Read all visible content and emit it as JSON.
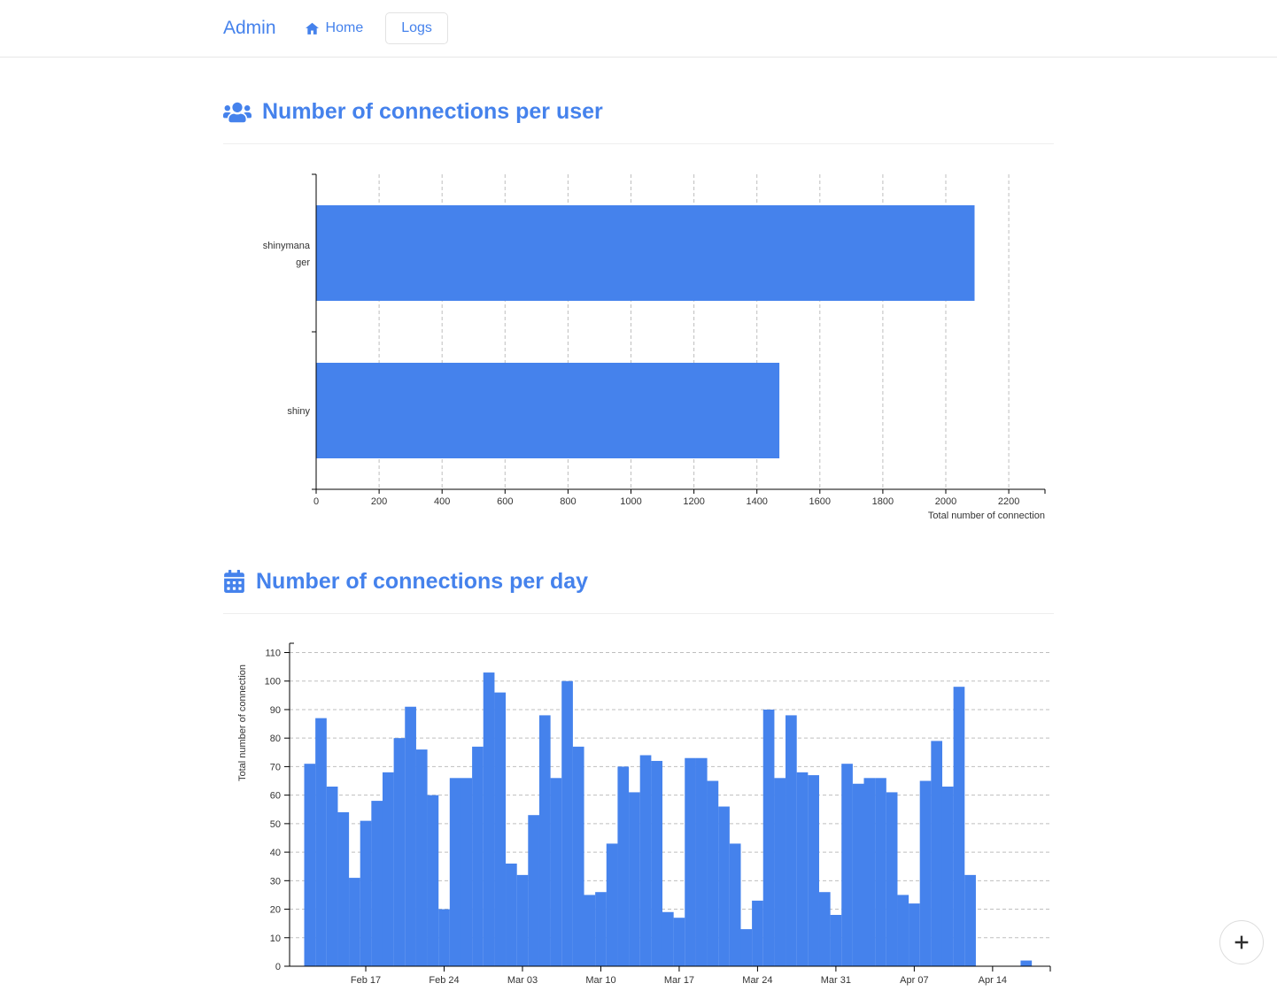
{
  "navbar": {
    "brand": "Admin",
    "home_label": "Home",
    "logs_label": "Logs"
  },
  "sections": {
    "per_user": {
      "title": "Number of connections per user"
    },
    "per_day": {
      "title": "Number of connections per day"
    }
  },
  "fab": {
    "label": "plus"
  },
  "icons": {
    "nav": "home-icon",
    "per_user": "users-icon",
    "per_day": "calendar-icon",
    "fab": "plus-icon"
  },
  "colors": {
    "accent": "#4582ec",
    "bar": "#4582ec",
    "grid": "#bfbfbf",
    "axis": "#000000",
    "tick_text": "#333333"
  },
  "chart_data": [
    {
      "type": "bar",
      "orientation": "horizontal",
      "title": "Number of connections per user",
      "categories": [
        "shinymanager",
        "shiny"
      ],
      "values": [
        2090,
        1470
      ],
      "xlabel": "Total number of connection",
      "xlim": [
        0,
        2315
      ],
      "xticks": [
        0,
        200,
        400,
        600,
        800,
        1000,
        1200,
        1400,
        1600,
        1800,
        2000,
        2200
      ],
      "grid": true,
      "legend": "none"
    },
    {
      "type": "bar",
      "orientation": "vertical",
      "title": "Number of connections per day",
      "ylabel": "Total number of connection",
      "ylim": [
        0,
        115
      ],
      "yticks": [
        0,
        10,
        20,
        30,
        40,
        50,
        60,
        70,
        80,
        90,
        100,
        110
      ],
      "xtick_labels": [
        "Feb 17",
        "Feb 24",
        "Mar 03",
        "Mar 10",
        "Mar 17",
        "Mar 24",
        "Mar 31",
        "Apr 07",
        "Apr 14"
      ],
      "x": [
        "Feb 12",
        "Feb 13",
        "Feb 14",
        "Feb 15",
        "Feb 16",
        "Feb 17",
        "Feb 18",
        "Feb 19",
        "Feb 20",
        "Feb 21",
        "Feb 22",
        "Feb 23",
        "Feb 24",
        "Feb 25",
        "Feb 26",
        "Feb 27",
        "Feb 28",
        "Mar 01",
        "Mar 02",
        "Mar 03",
        "Mar 04",
        "Mar 05",
        "Mar 06",
        "Mar 07",
        "Mar 08",
        "Mar 09",
        "Mar 10",
        "Mar 11",
        "Mar 12",
        "Mar 13",
        "Mar 14",
        "Mar 15",
        "Mar 16",
        "Mar 17",
        "Mar 18",
        "Mar 19",
        "Mar 20",
        "Mar 21",
        "Mar 22",
        "Mar 23",
        "Mar 24",
        "Mar 25",
        "Mar 26",
        "Mar 27",
        "Mar 28",
        "Mar 29",
        "Mar 30",
        "Mar 31",
        "Apr 01",
        "Apr 02",
        "Apr 03",
        "Apr 04",
        "Apr 05",
        "Apr 06",
        "Apr 07",
        "Apr 08",
        "Apr 09",
        "Apr 10",
        "Apr 11",
        "Apr 12",
        "Apr 17"
      ],
      "values": [
        71,
        87,
        63,
        54,
        31,
        51,
        58,
        68,
        80,
        91,
        76,
        60,
        20,
        66,
        66,
        77,
        103,
        96,
        36,
        32,
        53,
        88,
        66,
        100,
        77,
        25,
        26,
        43,
        70,
        61,
        74,
        72,
        19,
        17,
        73,
        73,
        65,
        56,
        43,
        13,
        23,
        90,
        66,
        88,
        68,
        67,
        26,
        18,
        71,
        64,
        66,
        66,
        61,
        25,
        22,
        65,
        79,
        63,
        98,
        32,
        2
      ],
      "grid": true,
      "legend": "none"
    }
  ]
}
